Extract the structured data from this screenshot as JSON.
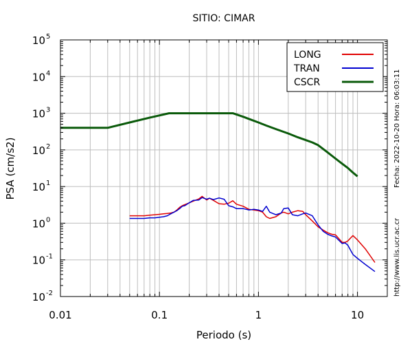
{
  "chart_data": {
    "type": "line",
    "title": "SITIO: CIMAR",
    "xlabel": "Periodo (s)",
    "ylabel": "PSA (cm/s2)",
    "x_scale": "log",
    "y_scale": "log",
    "xlim": [
      0.01,
      20
    ],
    "ylim": [
      0.01,
      100000
    ],
    "x_ticks": [
      {
        "value": 0.01,
        "label": "0.01"
      },
      {
        "value": 0.1,
        "label": "0.1"
      },
      {
        "value": 1,
        "label": "1"
      },
      {
        "value": 10,
        "label": "10"
      }
    ],
    "y_ticks": [
      {
        "value": 0.01,
        "base": "10",
        "exp": "-2"
      },
      {
        "value": 0.1,
        "base": "10",
        "exp": "-1"
      },
      {
        "value": 1,
        "base": "10",
        "exp": "0"
      },
      {
        "value": 10,
        "base": "10",
        "exp": "1"
      },
      {
        "value": 100,
        "base": "10",
        "exp": "2"
      },
      {
        "value": 1000,
        "base": "10",
        "exp": "3"
      },
      {
        "value": 10000,
        "base": "10",
        "exp": "4"
      },
      {
        "value": 100000,
        "base": "10",
        "exp": "5"
      }
    ],
    "grid": "vertical",
    "legend_position": "top-right",
    "series": [
      {
        "name": "LONG",
        "color": "#e00000",
        "x": [
          0.05,
          0.06,
          0.07,
          0.08,
          0.09,
          0.1,
          0.11,
          0.12,
          0.13,
          0.14,
          0.15,
          0.16,
          0.17,
          0.18,
          0.2,
          0.22,
          0.25,
          0.27,
          0.3,
          0.32,
          0.35,
          0.4,
          0.45,
          0.5,
          0.55,
          0.6,
          0.7,
          0.8,
          0.9,
          1.0,
          1.1,
          1.2,
          1.3,
          1.5,
          1.7,
          1.8,
          2.0,
          2.2,
          2.5,
          2.8,
          3.0,
          3.5,
          4.0,
          4.5,
          5.0,
          5.5,
          6.0,
          7.0,
          7.5,
          8.0,
          9.0,
          10.0,
          12.0,
          15.0
        ],
        "y": [
          1.6,
          1.6,
          1.6,
          1.65,
          1.7,
          1.75,
          1.8,
          1.85,
          1.9,
          2.0,
          2.3,
          2.7,
          3.0,
          3.2,
          3.6,
          4.0,
          4.6,
          5.4,
          4.3,
          4.8,
          4.2,
          3.4,
          3.3,
          3.5,
          4.1,
          3.3,
          2.9,
          2.4,
          2.3,
          2.2,
          2.0,
          1.5,
          1.35,
          1.5,
          1.9,
          2.0,
          1.8,
          2.0,
          2.2,
          2.1,
          1.7,
          1.15,
          0.8,
          0.65,
          0.55,
          0.5,
          0.48,
          0.3,
          0.3,
          0.33,
          0.46,
          0.35,
          0.2,
          0.085
        ]
      },
      {
        "name": "TRAN",
        "color": "#0000d0",
        "x": [
          0.05,
          0.06,
          0.07,
          0.08,
          0.09,
          0.1,
          0.11,
          0.12,
          0.13,
          0.14,
          0.15,
          0.16,
          0.17,
          0.18,
          0.2,
          0.22,
          0.25,
          0.27,
          0.3,
          0.32,
          0.35,
          0.4,
          0.45,
          0.5,
          0.55,
          0.6,
          0.7,
          0.8,
          0.9,
          1.0,
          1.1,
          1.2,
          1.3,
          1.5,
          1.7,
          1.8,
          2.0,
          2.2,
          2.5,
          2.8,
          3.0,
          3.5,
          4.0,
          4.5,
          5.0,
          5.5,
          6.0,
          7.0,
          7.5,
          8.0,
          9.0,
          10.0,
          12.0,
          15.0
        ],
        "y": [
          1.35,
          1.35,
          1.35,
          1.4,
          1.4,
          1.45,
          1.5,
          1.6,
          1.8,
          2.0,
          2.2,
          2.5,
          2.9,
          3.0,
          3.6,
          4.2,
          4.3,
          5.0,
          4.5,
          4.8,
          4.4,
          4.9,
          4.5,
          3.0,
          2.8,
          2.5,
          2.5,
          2.3,
          2.4,
          2.3,
          2.1,
          2.9,
          2.0,
          1.7,
          1.9,
          2.5,
          2.6,
          1.7,
          1.6,
          1.8,
          1.9,
          1.6,
          0.9,
          0.6,
          0.5,
          0.45,
          0.42,
          0.28,
          0.29,
          0.25,
          0.14,
          0.11,
          0.075,
          0.048
        ]
      },
      {
        "name": "CSCR",
        "color": "#0a5a0a",
        "x": [
          0.01,
          0.03,
          0.05,
          0.08,
          0.125,
          0.15,
          0.2,
          0.3,
          0.4,
          0.5,
          0.55,
          0.7,
          0.8,
          1.0,
          1.2,
          1.5,
          2.0,
          2.5,
          3.0,
          3.5,
          4.0,
          5.0,
          6.0,
          7.0,
          8.0,
          9.0,
          10.0
        ],
        "y": [
          400,
          400,
          560,
          760,
          1000,
          1000,
          1000,
          1000,
          1000,
          1000,
          1000,
          800,
          700,
          560,
          460,
          370,
          280,
          220,
          185,
          160,
          135,
          85,
          58,
          42,
          32,
          24,
          19
        ]
      }
    ],
    "side_notes": {
      "date_stamp": "Fecha: 2022-10-20 Hora: 06:03:11",
      "url": "http://www.lis.ucr.ac.cr"
    }
  }
}
